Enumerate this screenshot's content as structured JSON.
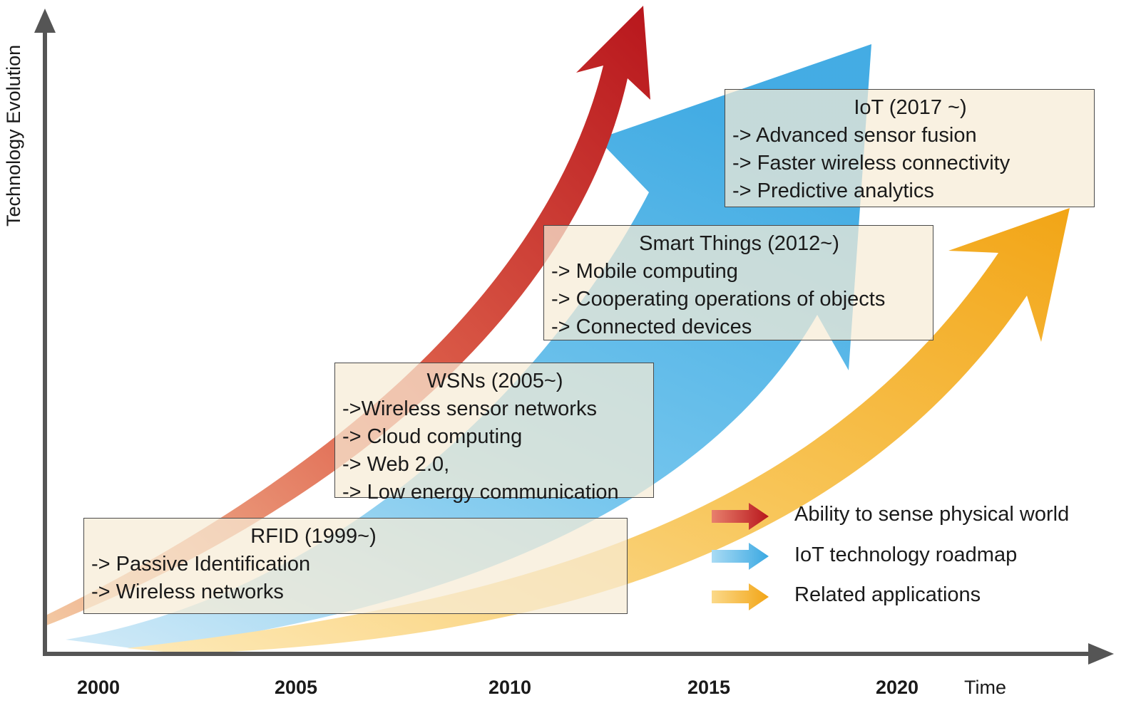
{
  "axes": {
    "y_label": "Technology Evolution",
    "x_label": "Time",
    "years": [
      "2000",
      "2005",
      "2010",
      "2015",
      "2020"
    ]
  },
  "colors": {
    "red": "#c0282a",
    "blue": "#4fb3e6",
    "orange": "#f5ae1e",
    "axis": "#555555"
  },
  "boxes": {
    "rfid": {
      "title": "RFID (1999~)",
      "items": [
        "-> Passive Identification",
        "-> Wireless networks"
      ]
    },
    "wsn": {
      "title": "WSNs (2005~)",
      "items": [
        "->Wireless sensor networks",
        "-> Cloud computing",
        "-> Web 2.0,",
        "-> Low energy communication"
      ]
    },
    "smart": {
      "title": "Smart Things (2012~)",
      "items": [
        "-> Mobile computing",
        "-> Cooperating operations of objects",
        "-> Connected devices"
      ]
    },
    "iot": {
      "title": "IoT (2017 ~)",
      "items": [
        "-> Advanced sensor fusion",
        "-> Faster wireless connectivity",
        "-> Predictive analytics"
      ]
    }
  },
  "legend": [
    {
      "label": "Ability to sense physical world",
      "color": "red"
    },
    {
      "label": "IoT technology roadmap",
      "color": "blue"
    },
    {
      "label": "Related applications",
      "color": "orange"
    }
  ]
}
